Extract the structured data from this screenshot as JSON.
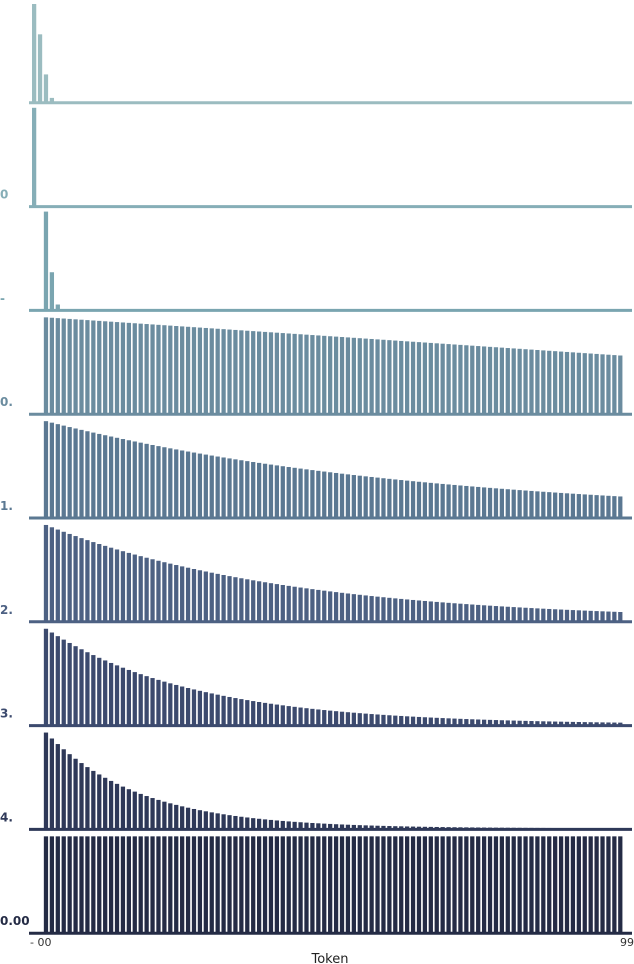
{
  "chart_data": {
    "type": "bar",
    "layout": "stacked-small-multiples",
    "xlabel": "Token",
    "x_tick_labels": [
      "- 00",
      "99"
    ],
    "x_range": [
      0,
      99
    ],
    "n_tokens": 100,
    "panels": [
      {
        "row_label": "",
        "color": "#9bbcc0",
        "values": [
          1.0,
          0.69,
          0.28,
          0.04
        ]
      },
      {
        "row_label": "0",
        "color": "#86aeb7",
        "values": [
          1.0
        ]
      },
      {
        "row_label": "-",
        "color": "#7aa5b0",
        "values": [
          0.0,
          0.0,
          1.0,
          0.38,
          0.05
        ]
      },
      {
        "row_label": "0.",
        "color": "#6b8c9f",
        "decay": "linear",
        "start_index": 2,
        "start": 0.98,
        "end": 0.59
      },
      {
        "row_label": "1.",
        "color": "#5b7892",
        "decay": "exp",
        "start_index": 2,
        "start": 0.98,
        "end": 0.21
      },
      {
        "row_label": "2.",
        "color": "#4d6183",
        "decay": "exp",
        "start_index": 2,
        "start": 0.98,
        "end": 0.09
      },
      {
        "row_label": "3.",
        "color": "#3c4a6e",
        "decay": "exp",
        "start_index": 2,
        "start": 0.98,
        "end": 0.02
      },
      {
        "row_label": "4.",
        "color": "#2e3858",
        "decay": "exp",
        "start_index": 2,
        "start": 0.98,
        "end": 0.0
      },
      {
        "row_label": "0.00",
        "color": "#242b45",
        "decay": "flat",
        "start_index": 2,
        "start": 0.98,
        "end": 0.98
      }
    ]
  }
}
